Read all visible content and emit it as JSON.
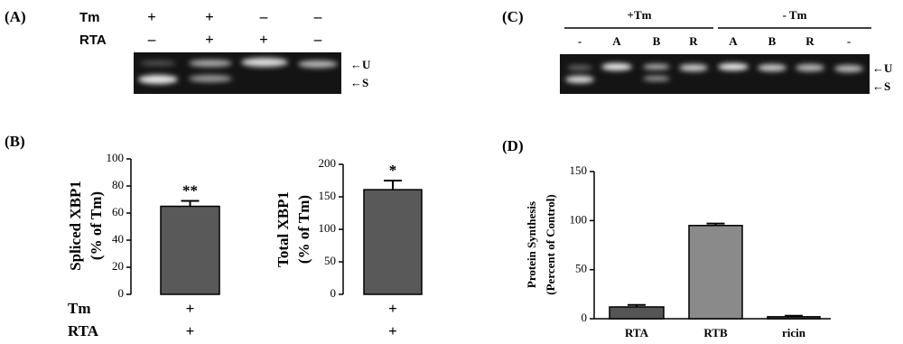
{
  "panels": {
    "A": {
      "label": "(A)",
      "rows": [
        {
          "name": "Tm",
          "signs": [
            "+",
            "+",
            "–",
            "–"
          ]
        },
        {
          "name": "RTA",
          "signs": [
            "–",
            "+",
            "+",
            "–"
          ]
        }
      ],
      "markers": [
        "←U",
        "←S"
      ]
    },
    "B": {
      "label": "(B)"
    },
    "C": {
      "label": "(C)",
      "groups": [
        "+Tm",
        "- Tm"
      ],
      "lanes": [
        "-",
        "A",
        "B",
        "R",
        "A",
        "B",
        "R",
        "-"
      ],
      "markers": [
        "←U",
        "←S"
      ]
    },
    "D": {
      "label": "(D)"
    }
  },
  "chart_data": [
    {
      "type": "bar",
      "ylabel": [
        "Spliced XBP1",
        "(% of Tm)"
      ],
      "values": [
        65
      ],
      "errors": [
        4
      ],
      "annotations": [
        "**"
      ],
      "color": "#595959",
      "conditions": [
        {
          "name": "Tm",
          "values": [
            "+"
          ]
        },
        {
          "name": "RTA",
          "values": [
            "+"
          ]
        }
      ],
      "ylim": [
        0,
        100
      ],
      "yticks": [
        0,
        20,
        40,
        60,
        80,
        100
      ]
    },
    {
      "type": "bar",
      "ylabel": [
        "Total XBP1",
        "(% of Tm)"
      ],
      "values": [
        161
      ],
      "errors": [
        14
      ],
      "annotations": [
        "*"
      ],
      "color": "#595959",
      "conditions": [
        {
          "name": "Tm",
          "values": [
            "+"
          ]
        },
        {
          "name": "RTA",
          "values": [
            "+"
          ]
        }
      ],
      "ylim": [
        0,
        200
      ],
      "yticks": [
        0,
        50,
        100,
        150,
        200
      ]
    },
    {
      "type": "bar",
      "ylabel": [
        "Protein Synthesis",
        "(Percent of Control)"
      ],
      "categories": [
        "RTA",
        "RTB",
        "ricin"
      ],
      "values": [
        12,
        95,
        2
      ],
      "errors": [
        2,
        2,
        1
      ],
      "colors": [
        "#555555",
        "#8a8a8a",
        "#555555"
      ],
      "ylim": [
        0,
        150
      ],
      "yticks": [
        0,
        50,
        100,
        150
      ]
    }
  ]
}
